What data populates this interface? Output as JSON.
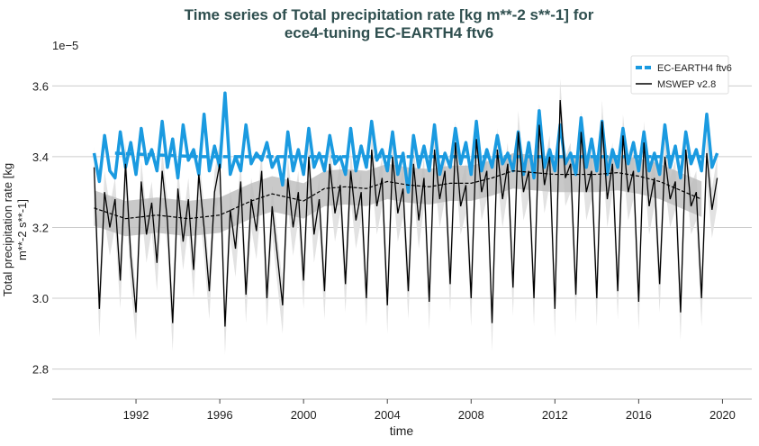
{
  "chart_data": {
    "type": "line",
    "title": "Time series of Total precipitation rate [kg m**-2 s**-1] for",
    "subtitle": "ece4-tuning EC-EARTH4 ftv6",
    "xlabel": "time",
    "ylabel_line1": "Total precipitation rate [kg",
    "ylabel_line2": "m**-2 s**-1]",
    "y_offset_label": "1e−5",
    "xlim": [
      1988.0,
      2021.4
    ],
    "ylim": [
      2.715,
      3.69
    ],
    "x_ticks": [
      1992,
      1996,
      2000,
      2004,
      2008,
      2012,
      2016,
      2020
    ],
    "x_tick_labels": [
      "1992",
      "1996",
      "2000",
      "2004",
      "2008",
      "2012",
      "2016",
      "2020"
    ],
    "y_ticks": [
      2.8,
      3.0,
      3.2,
      3.4,
      3.6
    ],
    "y_tick_labels": [
      "2.8",
      "3.0",
      "3.2",
      "3.4",
      "3.6"
    ],
    "grid": "horizontal",
    "legend_placement": "top-right",
    "x_start": 1990.0,
    "x_step": 0.25,
    "series": [
      {
        "name": "EC-EARTH4 ftv6",
        "color": "#1a9ae0",
        "values": [
          3.41,
          3.33,
          3.46,
          3.36,
          3.34,
          3.47,
          3.37,
          3.44,
          3.35,
          3.48,
          3.38,
          3.42,
          3.36,
          3.5,
          3.37,
          3.45,
          3.34,
          3.49,
          3.39,
          3.42,
          3.35,
          3.52,
          3.36,
          3.43,
          3.37,
          3.58,
          3.35,
          3.4,
          3.36,
          3.49,
          3.38,
          3.41,
          3.39,
          3.44,
          3.37,
          3.4,
          3.32,
          3.47,
          3.36,
          3.42,
          3.35,
          3.48,
          3.37,
          3.41,
          3.36,
          3.46,
          3.38,
          3.4,
          3.35,
          3.48,
          3.36,
          3.43,
          3.37,
          3.5,
          3.39,
          3.42,
          3.36,
          3.47,
          3.35,
          3.41,
          3.3,
          3.46,
          3.37,
          3.43,
          3.36,
          3.49,
          3.35,
          3.41,
          3.37,
          3.48,
          3.38,
          3.44,
          3.35,
          3.5,
          3.36,
          3.42,
          3.37,
          3.46,
          3.38,
          3.41,
          3.36,
          3.47,
          3.35,
          3.44,
          3.34,
          3.53,
          3.37,
          3.42,
          3.36,
          3.49,
          3.38,
          3.41,
          3.35,
          3.51,
          3.37,
          3.45,
          3.36,
          3.5,
          3.35,
          3.42,
          3.37,
          3.48,
          3.38,
          3.44,
          3.36,
          3.47,
          3.36,
          3.41,
          3.35,
          3.49,
          3.37,
          3.43,
          3.34,
          3.47,
          3.38,
          3.42,
          3.36,
          3.52,
          3.37,
          3.41
        ]
      },
      {
        "name": "MSWEP v2.8",
        "color": "#000000",
        "values": [
          3.37,
          2.97,
          3.3,
          3.2,
          3.28,
          3.05,
          3.38,
          3.12,
          2.96,
          3.33,
          3.18,
          3.27,
          3.1,
          3.36,
          3.22,
          2.93,
          3.31,
          3.16,
          3.28,
          3.08,
          3.35,
          3.2,
          3.02,
          3.3,
          3.38,
          2.92,
          3.25,
          3.14,
          3.33,
          3.01,
          3.28,
          3.19,
          3.36,
          3.0,
          3.26,
          3.12,
          2.98,
          3.34,
          3.2,
          3.3,
          3.05,
          3.4,
          3.18,
          3.28,
          3.02,
          3.38,
          3.24,
          3.32,
          3.04,
          3.36,
          3.22,
          3.3,
          3.0,
          3.42,
          3.26,
          3.34,
          2.98,
          3.4,
          3.24,
          3.31,
          3.02,
          3.38,
          3.22,
          3.34,
          2.99,
          3.42,
          3.28,
          3.36,
          3.04,
          3.44,
          3.26,
          3.32,
          3.0,
          3.45,
          3.3,
          3.36,
          2.93,
          3.42,
          3.28,
          3.38,
          3.03,
          3.47,
          3.3,
          3.36,
          3.0,
          3.49,
          3.32,
          3.4,
          2.97,
          3.56,
          3.34,
          3.38,
          3.01,
          3.47,
          3.3,
          3.36,
          3.0,
          3.5,
          3.28,
          3.38,
          3.02,
          3.46,
          3.3,
          3.36,
          2.99,
          3.44,
          3.26,
          3.34,
          3.04,
          3.4,
          3.28,
          3.33,
          2.96,
          3.42,
          3.26,
          3.3,
          3.0,
          3.41,
          3.25,
          3.34
        ]
      },
      {
        "name_hidden": "EC-EARTH4 ftv6 running mean",
        "color": "#1a9ae0",
        "style": "dashed",
        "x": [
          1991,
          1995,
          2000,
          2005,
          2010,
          2015,
          2019
        ],
        "values": [
          3.41,
          3.4,
          3.4,
          3.4,
          3.4,
          3.4,
          3.4
        ]
      },
      {
        "name_hidden": "MSWEP v2.8 running mean",
        "color": "#000000",
        "style": "dashed",
        "x": [
          1990,
          1991.5,
          1993,
          1994.5,
          1996,
          1997.5,
          1998.5,
          2000,
          2001,
          2002,
          2003,
          2004,
          2005,
          2006,
          2007,
          2008,
          2009,
          2010,
          2011,
          2012,
          2013,
          2014,
          2015,
          2016,
          2017,
          2018,
          2019
        ],
        "values": [
          3.255,
          3.225,
          3.235,
          3.225,
          3.235,
          3.275,
          3.295,
          3.275,
          3.31,
          3.315,
          3.31,
          3.33,
          3.32,
          3.315,
          3.325,
          3.325,
          3.34,
          3.36,
          3.355,
          3.35,
          3.35,
          3.35,
          3.355,
          3.345,
          3.33,
          3.305,
          3.28
        ],
        "band_half_width": 0.05
      }
    ]
  }
}
